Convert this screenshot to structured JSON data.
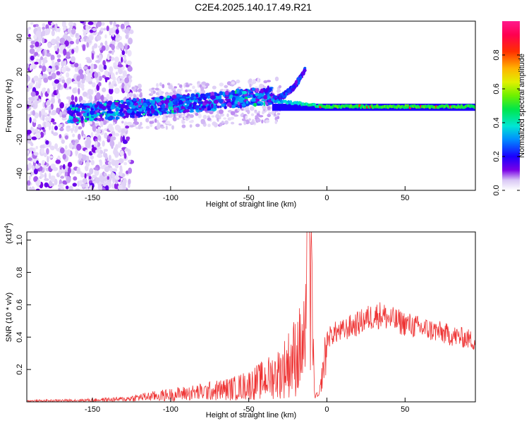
{
  "title": "C2E4.2025.140.17.49.R21",
  "chart_data": [
    {
      "type": "heatmap",
      "name": "spectrogram",
      "xlabel": "Height of straight line (km)",
      "ylabel": "Frequency (Hz)",
      "xlim": [
        -192,
        95
      ],
      "ylim": [
        -50,
        50
      ],
      "xticks": [
        -150,
        -100,
        -50,
        0,
        50
      ],
      "yticks": [
        -40,
        -20,
        0,
        20,
        40
      ],
      "colorbar": {
        "label": "Normalized spectral amplitude",
        "range": [
          0,
          1
        ],
        "ticks": [
          0.0,
          0.2,
          0.4,
          0.6,
          0.8
        ],
        "tick_labels": [
          "0.0",
          "0.2",
          "0.4",
          "0.6",
          "0.8"
        ]
      },
      "features": [
        {
          "description": "diffuse noise",
          "x_range": [
            -192,
            -125
          ],
          "freq_range": [
            -50,
            50
          ],
          "amplitude": 0.1
        },
        {
          "description": "ascending band",
          "x_range": [
            -165,
            -35
          ],
          "freq_start": -5,
          "freq_end": 6,
          "amplitude": 0.3
        },
        {
          "description": "hook",
          "x_range": [
            -35,
            -14
          ],
          "freq_start": 4,
          "freq_end": 21,
          "amplitude": 0.2
        },
        {
          "description": "steady tone",
          "x_range": [
            -35,
            95
          ],
          "freq": 0,
          "amplitude": 0.6
        }
      ]
    },
    {
      "type": "line",
      "name": "snr",
      "xlabel": "Height of straight line (km)",
      "ylabel": "SNR (10 * v/v)",
      "yscale_label": "(x10",
      "yscale_exp": "4",
      "yscale_suffix": ")",
      "xlim": [
        -192,
        95
      ],
      "ylim": [
        0,
        1.05
      ],
      "xticks": [
        -150,
        -100,
        -50,
        0,
        50
      ],
      "yticks": [
        0.2,
        0.4,
        0.6,
        0.8,
        1.0
      ],
      "ytick_labels": [
        "0.2",
        "0.4",
        "0.6",
        "0.8",
        "1.0"
      ],
      "color": "#ee3333",
      "envelope": {
        "x": [
          -192,
          -170,
          -150,
          -130,
          -120,
          -100,
          -80,
          -60,
          -50,
          -40,
          -30,
          -25,
          -20,
          -15,
          -12,
          -10,
          -8,
          -5,
          0,
          5,
          10,
          15,
          20,
          25,
          30,
          35,
          40,
          50,
          60,
          70,
          80,
          90,
          95
        ],
        "y": [
          0.01,
          0.015,
          0.02,
          0.03,
          0.05,
          0.08,
          0.11,
          0.15,
          0.19,
          0.25,
          0.33,
          0.42,
          0.52,
          0.62,
          0.8,
          0.95,
          0.05,
          0.04,
          0.42,
          0.46,
          0.47,
          0.5,
          0.52,
          0.55,
          0.57,
          0.58,
          0.55,
          0.52,
          0.49,
          0.47,
          0.44,
          0.42,
          0.4
        ]
      }
    }
  ]
}
